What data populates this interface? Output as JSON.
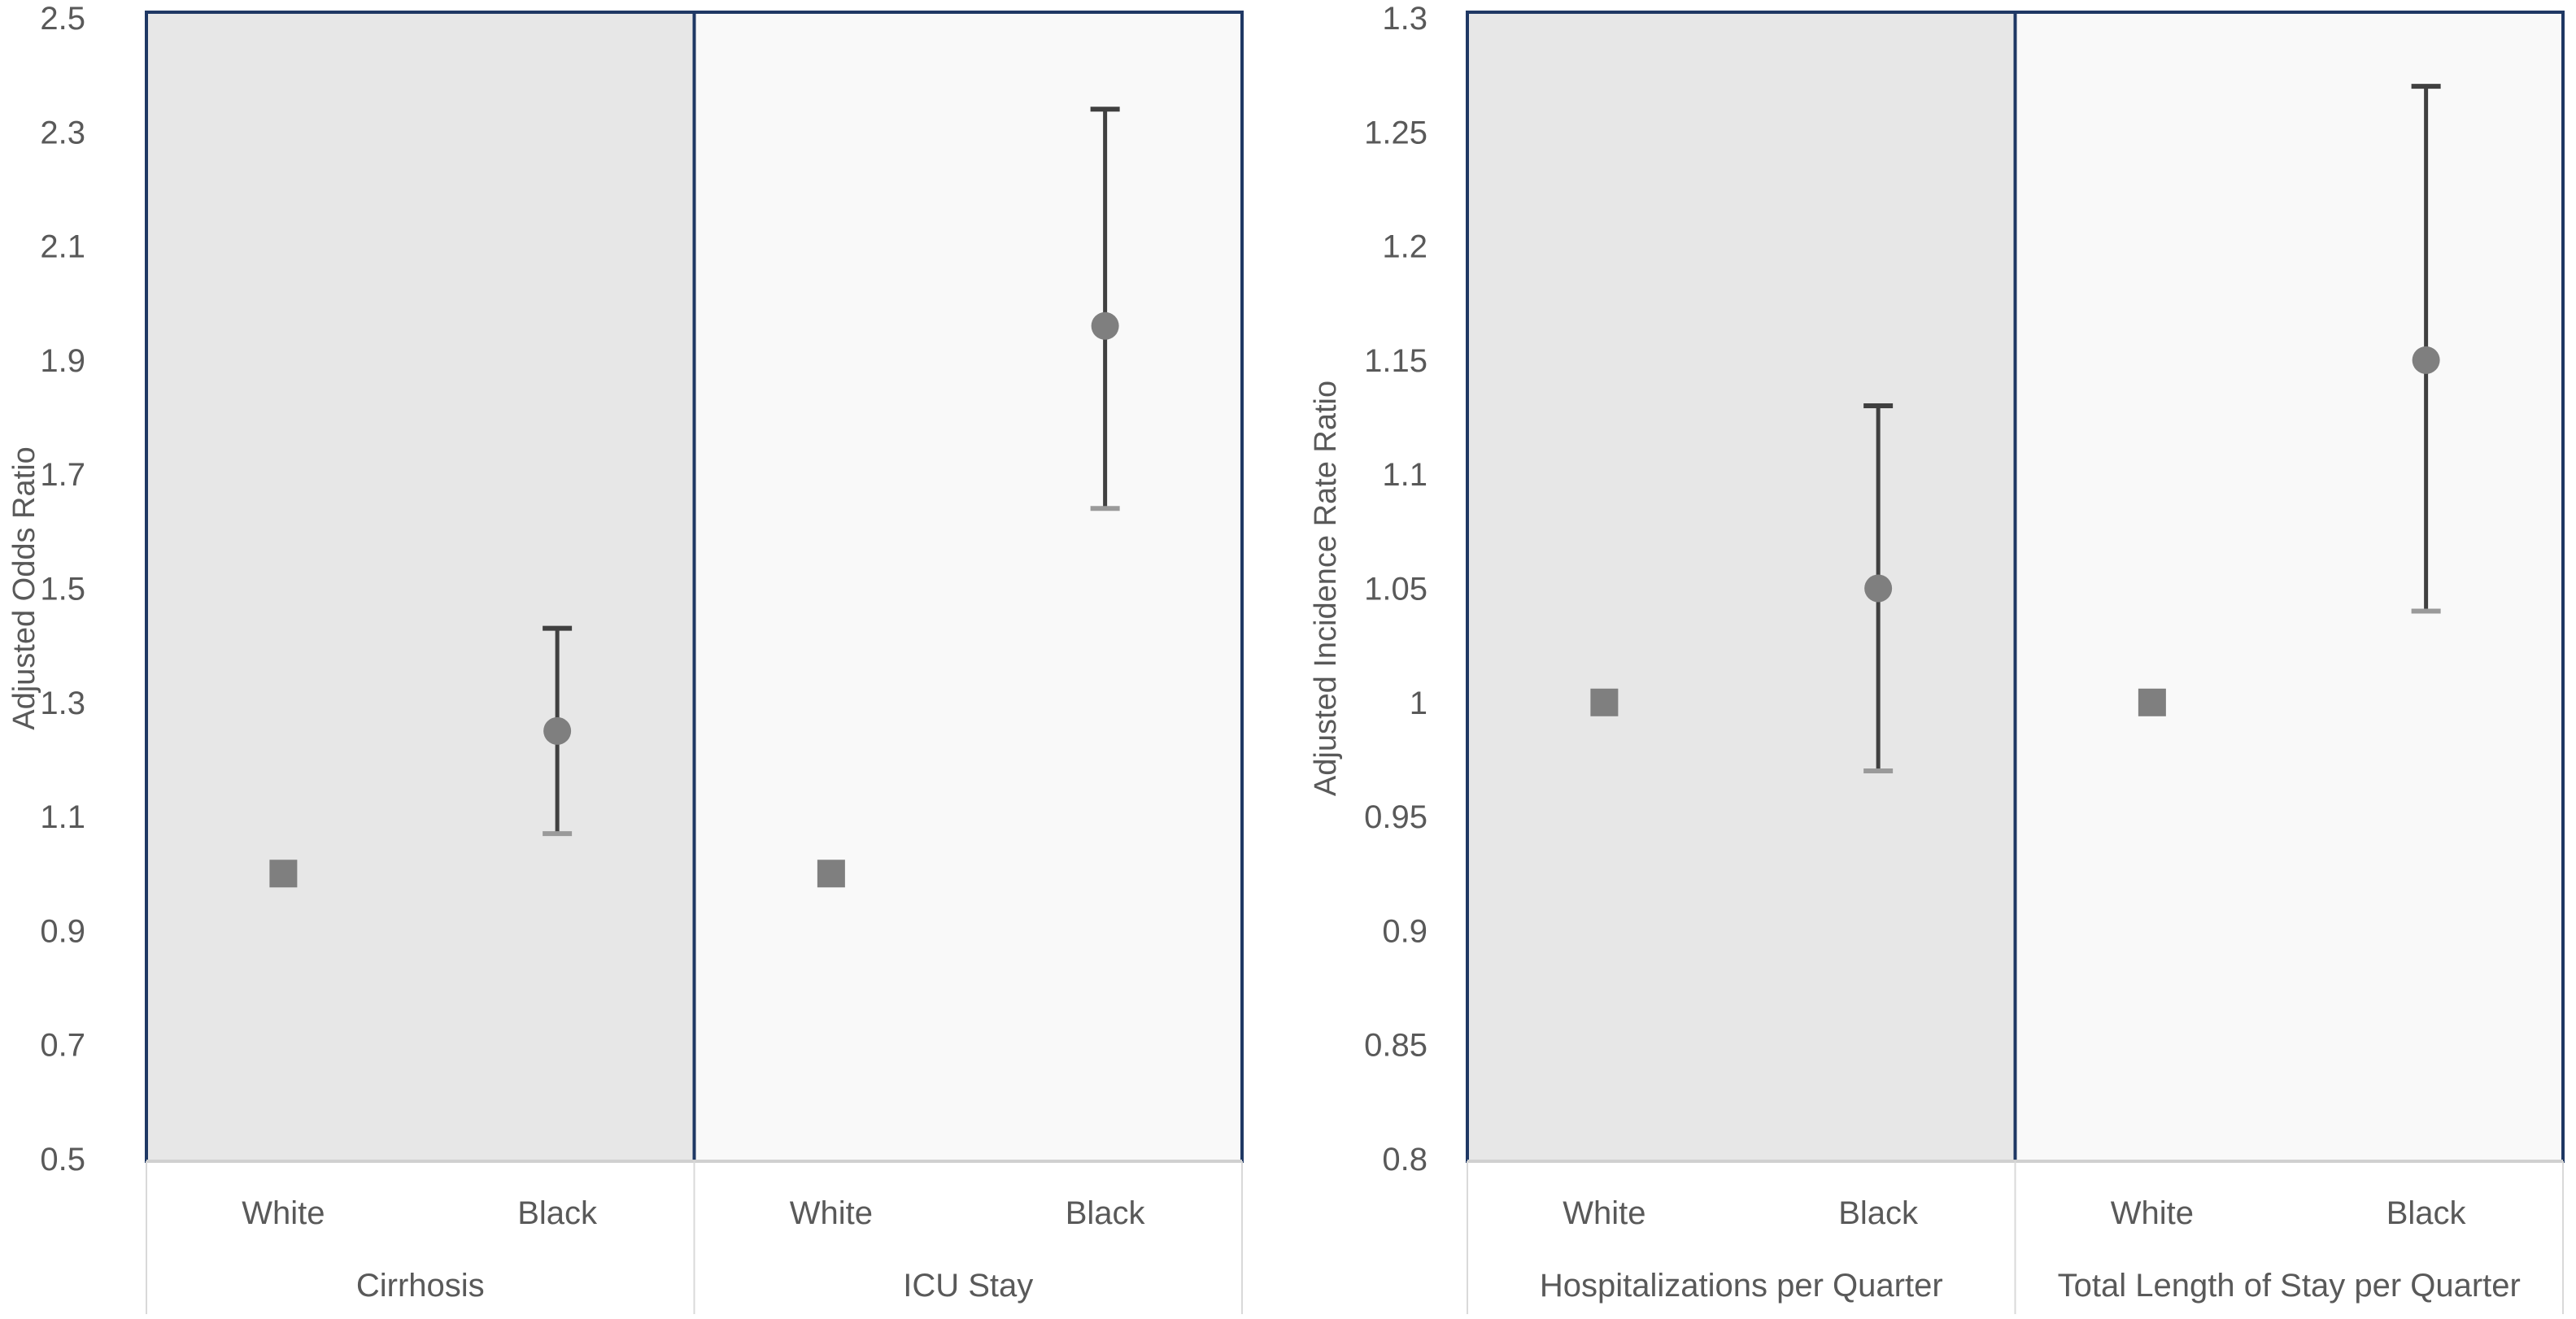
{
  "chart_data": [
    {
      "type": "scatter",
      "ylabel": "Adjusted Odds Ratio",
      "ylim": [
        0.5,
        2.5
      ],
      "yticks": [
        "0.5",
        "0.7",
        "0.9",
        "1.1",
        "1.3",
        "1.5",
        "1.7",
        "1.9",
        "2.1",
        "2.3",
        "2.5"
      ],
      "grid": false,
      "groups": [
        {
          "name": "Cirrhosis",
          "background": "#e7e7e7",
          "points": [
            {
              "category": "White",
              "value": 1.0,
              "marker": "square"
            },
            {
              "category": "Black",
              "value": 1.25,
              "ci_low": 1.07,
              "ci_high": 1.43,
              "marker": "circle"
            }
          ]
        },
        {
          "name": "ICU Stay",
          "background": "#f9f9f9",
          "points": [
            {
              "category": "White",
              "value": 1.0,
              "marker": "square"
            },
            {
              "category": "Black",
              "value": 1.96,
              "ci_low": 1.64,
              "ci_high": 2.34,
              "marker": "circle"
            }
          ]
        }
      ]
    },
    {
      "type": "scatter",
      "ylabel": "Adjusted Incidence Rate Ratio",
      "ylim": [
        0.8,
        1.3
      ],
      "yticks": [
        "0.8",
        "0.85",
        "0.9",
        "0.95",
        "1",
        "1.05",
        "1.1",
        "1.15",
        "1.2",
        "1.25",
        "1.3"
      ],
      "grid": false,
      "groups": [
        {
          "name": "Hospitalizations per Quarter",
          "background": "#e7e7e7",
          "points": [
            {
              "category": "White",
              "value": 1.0,
              "marker": "square"
            },
            {
              "category": "Black",
              "value": 1.05,
              "ci_low": 0.97,
              "ci_high": 1.13,
              "marker": "circle"
            }
          ]
        },
        {
          "name": "Total Length of Stay per Quarter",
          "background": "#f9f9f9",
          "points": [
            {
              "category": "White",
              "value": 1.0,
              "marker": "square"
            },
            {
              "category": "Black",
              "value": 1.15,
              "ci_low": 1.04,
              "ci_high": 1.27,
              "marker": "circle"
            }
          ]
        }
      ]
    }
  ],
  "colors": {
    "border": "#1f3864",
    "marker": "#7f7f7f",
    "errorbar": "#404040",
    "text": "#595959"
  }
}
